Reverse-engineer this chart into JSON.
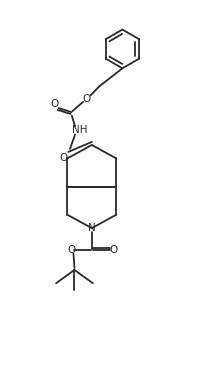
{
  "bg_color": "#ffffff",
  "line_color": "#2a2a2a",
  "line_width": 1.3,
  "fig_width": 2.04,
  "fig_height": 3.67,
  "dpi": 100,
  "xlim": [
    0,
    10
  ],
  "ylim": [
    0,
    18
  ]
}
